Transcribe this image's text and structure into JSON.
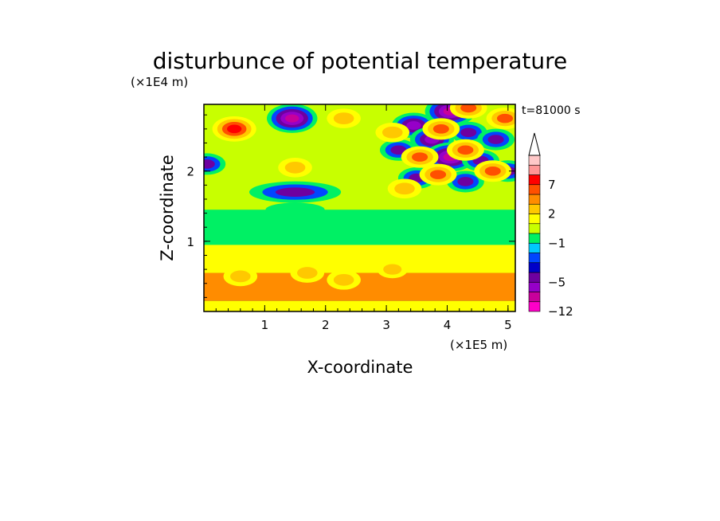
{
  "chart_data": {
    "type": "heatmap",
    "title": "disturbunce of potential temperature",
    "xlabel": "X-coordinate",
    "ylabel": "Z-coordinate",
    "x_unit": "(×1E5 m)",
    "y_unit": "(×1E4 m)",
    "time_label": "t=81000 s",
    "xlim": [
      0,
      5.12
    ],
    "ylim": [
      0,
      2.95
    ],
    "x_ticks": [
      "1",
      "2",
      "3",
      "4",
      "5"
    ],
    "y_ticks": [
      "1",
      "2"
    ],
    "colorbar": {
      "levels": [
        -12,
        -9,
        -7,
        -5,
        -4,
        -3,
        -2,
        -1,
        0,
        1,
        2,
        3,
        5,
        7,
        9,
        12
      ],
      "tick_labels": [
        "7",
        "2",
        "−1",
        "−5",
        "−12"
      ],
      "colors": [
        "#ff00c8",
        "#c8009b",
        "#9600c8",
        "#6e00a0",
        "#0000c8",
        "#0046ff",
        "#00c8ff",
        "#00f064",
        "#c8ff00",
        "#ffff00",
        "#ffc800",
        "#ff8c00",
        "#ff5000",
        "#ff0000",
        "#ff9696",
        "#ffc8c8"
      ],
      "extend_max": true
    },
    "bands": [
      {
        "z_from": 0.0,
        "z_to": 0.15,
        "value": 1.5,
        "note": "yellow-green with thin green streak near surface"
      },
      {
        "z_from": 0.15,
        "z_to": 0.55,
        "value": 3.0,
        "note": "orange/yellow warm band"
      },
      {
        "z_from": 0.55,
        "z_to": 0.95,
        "value": 1.5,
        "note": "yellow"
      },
      {
        "z_from": 0.95,
        "z_to": 1.45,
        "value": -0.5,
        "note": "green with cyan streaks"
      },
      {
        "z_from": 1.45,
        "z_to": 2.95,
        "value": 0,
        "note": "wave pattern, orange/red and blue/purple cells"
      }
    ],
    "features": [
      {
        "x": 0.5,
        "z": 2.6,
        "value": 7,
        "shape": "warm cell"
      },
      {
        "x": 1.5,
        "z": 2.05,
        "value": 4,
        "shape": "warm cell"
      },
      {
        "x": 1.5,
        "z": 1.7,
        "value": -5,
        "shape": "cold elongated band"
      },
      {
        "x": 1.5,
        "z": 1.45,
        "value": -1,
        "shape": "cyan band"
      },
      {
        "x": 1.45,
        "z": 2.75,
        "value": -9,
        "shape": "cold cell"
      },
      {
        "x": 2.3,
        "z": 2.75,
        "value": 4,
        "shape": "warm cell"
      },
      {
        "x": 0.05,
        "z": 2.1,
        "value": -5,
        "shape": "cold cell"
      },
      {
        "x": 0.6,
        "z": 0.5,
        "value": 4,
        "shape": "warm cell"
      },
      {
        "x": 1.7,
        "z": 0.55,
        "value": 4,
        "shape": "warm cell"
      },
      {
        "x": 2.3,
        "z": 0.45,
        "value": 4,
        "shape": "warm cell"
      },
      {
        "x": 3.1,
        "z": 0.6,
        "value": 3,
        "shape": "warm cell"
      },
      {
        "x": 3.2,
        "z": 2.3,
        "value": -5,
        "shape": "cold cell"
      },
      {
        "x": 3.45,
        "z": 2.65,
        "value": -7,
        "shape": "cold cell"
      },
      {
        "x": 4.05,
        "z": 2.85,
        "value": -9,
        "shape": "cold cell"
      },
      {
        "x": 3.75,
        "z": 2.45,
        "value": -7,
        "shape": "cold cell"
      },
      {
        "x": 4.35,
        "z": 2.55,
        "value": -5,
        "shape": "cold cell"
      },
      {
        "x": 4.05,
        "z": 2.2,
        "value": -9,
        "shape": "cold cell"
      },
      {
        "x": 4.8,
        "z": 2.45,
        "value": -5,
        "shape": "cold cell"
      },
      {
        "x": 4.55,
        "z": 2.15,
        "value": -5,
        "shape": "cold cell"
      },
      {
        "x": 5.0,
        "z": 2.0,
        "value": -5,
        "shape": "cold cell"
      },
      {
        "x": 3.5,
        "z": 1.9,
        "value": -5,
        "shape": "cold cell"
      },
      {
        "x": 4.3,
        "z": 1.85,
        "value": -5,
        "shape": "cold cell"
      },
      {
        "x": 3.1,
        "z": 2.55,
        "value": 4,
        "shape": "warm cell"
      },
      {
        "x": 3.55,
        "z": 2.2,
        "value": 5,
        "shape": "warm cell"
      },
      {
        "x": 3.9,
        "z": 2.6,
        "value": 5,
        "shape": "warm cell"
      },
      {
        "x": 4.35,
        "z": 2.9,
        "value": 5,
        "shape": "warm cell"
      },
      {
        "x": 4.3,
        "z": 2.3,
        "value": 5,
        "shape": "warm cell"
      },
      {
        "x": 3.85,
        "z": 1.95,
        "value": 5,
        "shape": "warm cell"
      },
      {
        "x": 4.75,
        "z": 2.0,
        "value": 5,
        "shape": "warm cell"
      },
      {
        "x": 4.95,
        "z": 2.75,
        "value": 5,
        "shape": "warm cell"
      },
      {
        "x": 3.3,
        "z": 1.75,
        "value": 4,
        "shape": "warm cell"
      }
    ]
  }
}
